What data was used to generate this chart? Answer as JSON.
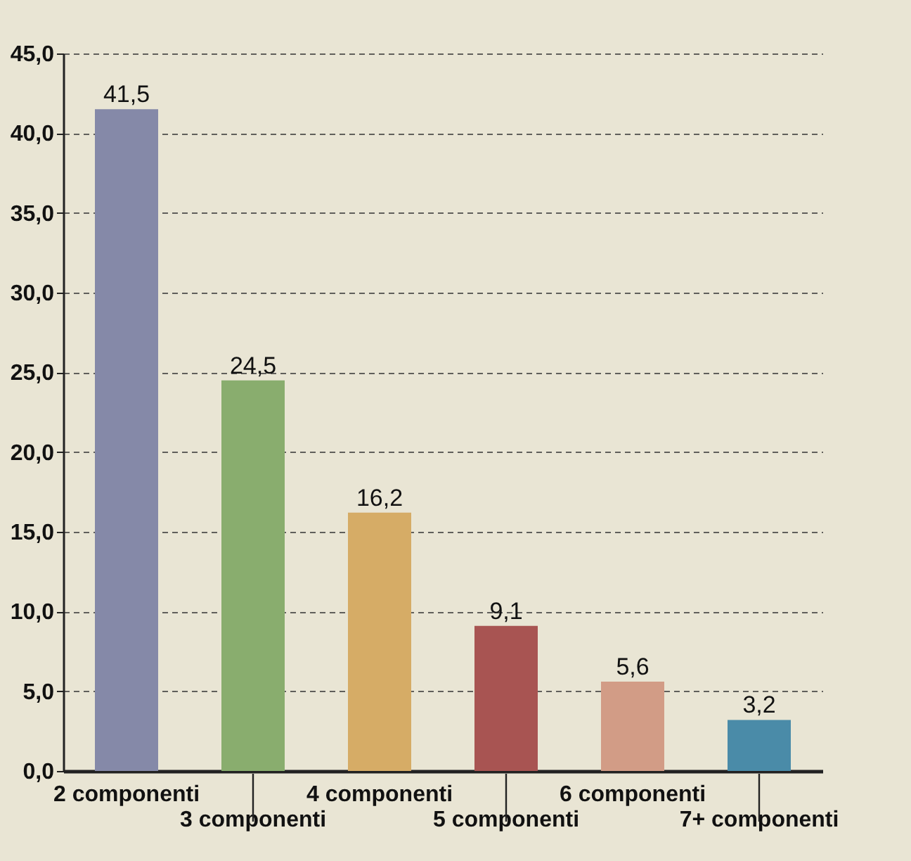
{
  "chart_data": {
    "type": "bar",
    "categories": [
      "2 componenti",
      "3 componenti",
      "4 componenti",
      "5 componenti",
      "6 componenti",
      "7+ componenti"
    ],
    "values": [
      41.5,
      24.5,
      16.2,
      9.1,
      5.6,
      3.2
    ],
    "colors": [
      "#8589a8",
      "#89ad6e",
      "#d6ac66",
      "#a85452",
      "#d29c86",
      "#4a8ba8"
    ],
    "value_labels": [
      "41,5",
      "24,5",
      "16,2",
      "9,1",
      "5,6",
      "3,2"
    ],
    "ylim": [
      0,
      45
    ],
    "yticks": [
      {
        "value": 0,
        "label": "0,0"
      },
      {
        "value": 5,
        "label": "5,0"
      },
      {
        "value": 10,
        "label": "10,0"
      },
      {
        "value": 15,
        "label": "15,0"
      },
      {
        "value": 20,
        "label": "20,0"
      },
      {
        "value": 25,
        "label": "25,0"
      },
      {
        "value": 30,
        "label": "30,0"
      },
      {
        "value": 35,
        "label": "35,0"
      },
      {
        "value": 40,
        "label": "40,0"
      },
      {
        "value": 45,
        "label": "45,0"
      }
    ],
    "grid": "y"
  }
}
